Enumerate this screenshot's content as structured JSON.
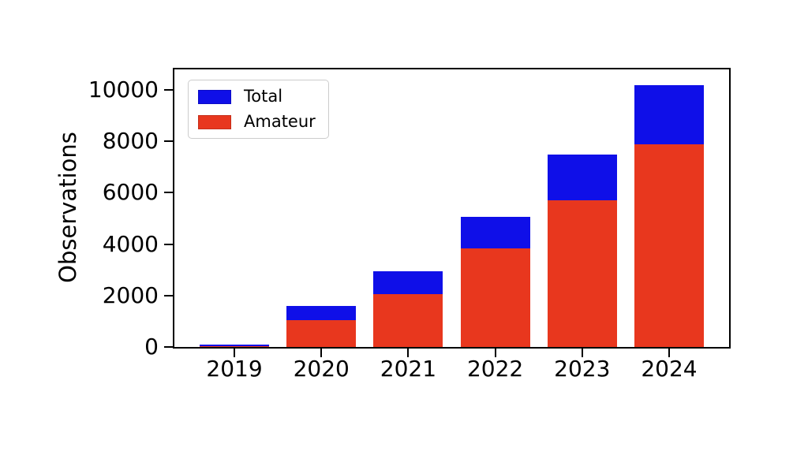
{
  "figure": {
    "background_color": "#ffffff",
    "axis_color": "#000000"
  },
  "chart_data": {
    "type": "bar",
    "mode": "overlay",
    "title": "",
    "xlabel": "",
    "ylabel": "Observations",
    "categories": [
      "2019",
      "2020",
      "2021",
      "2022",
      "2023",
      "2024"
    ],
    "series": [
      {
        "name": "Total",
        "color": "#0f0fe8",
        "values": [
          100,
          1600,
          2950,
          5050,
          7480,
          10200
        ]
      },
      {
        "name": "Amateur",
        "color": "#e8371e",
        "values": [
          30,
          1050,
          2050,
          3820,
          5700,
          7880
        ]
      }
    ],
    "yticks": [
      0,
      2000,
      4000,
      6000,
      8000,
      10000
    ],
    "ylim": [
      0,
      10800
    ],
    "legend_position": "upper left",
    "grid": false
  }
}
